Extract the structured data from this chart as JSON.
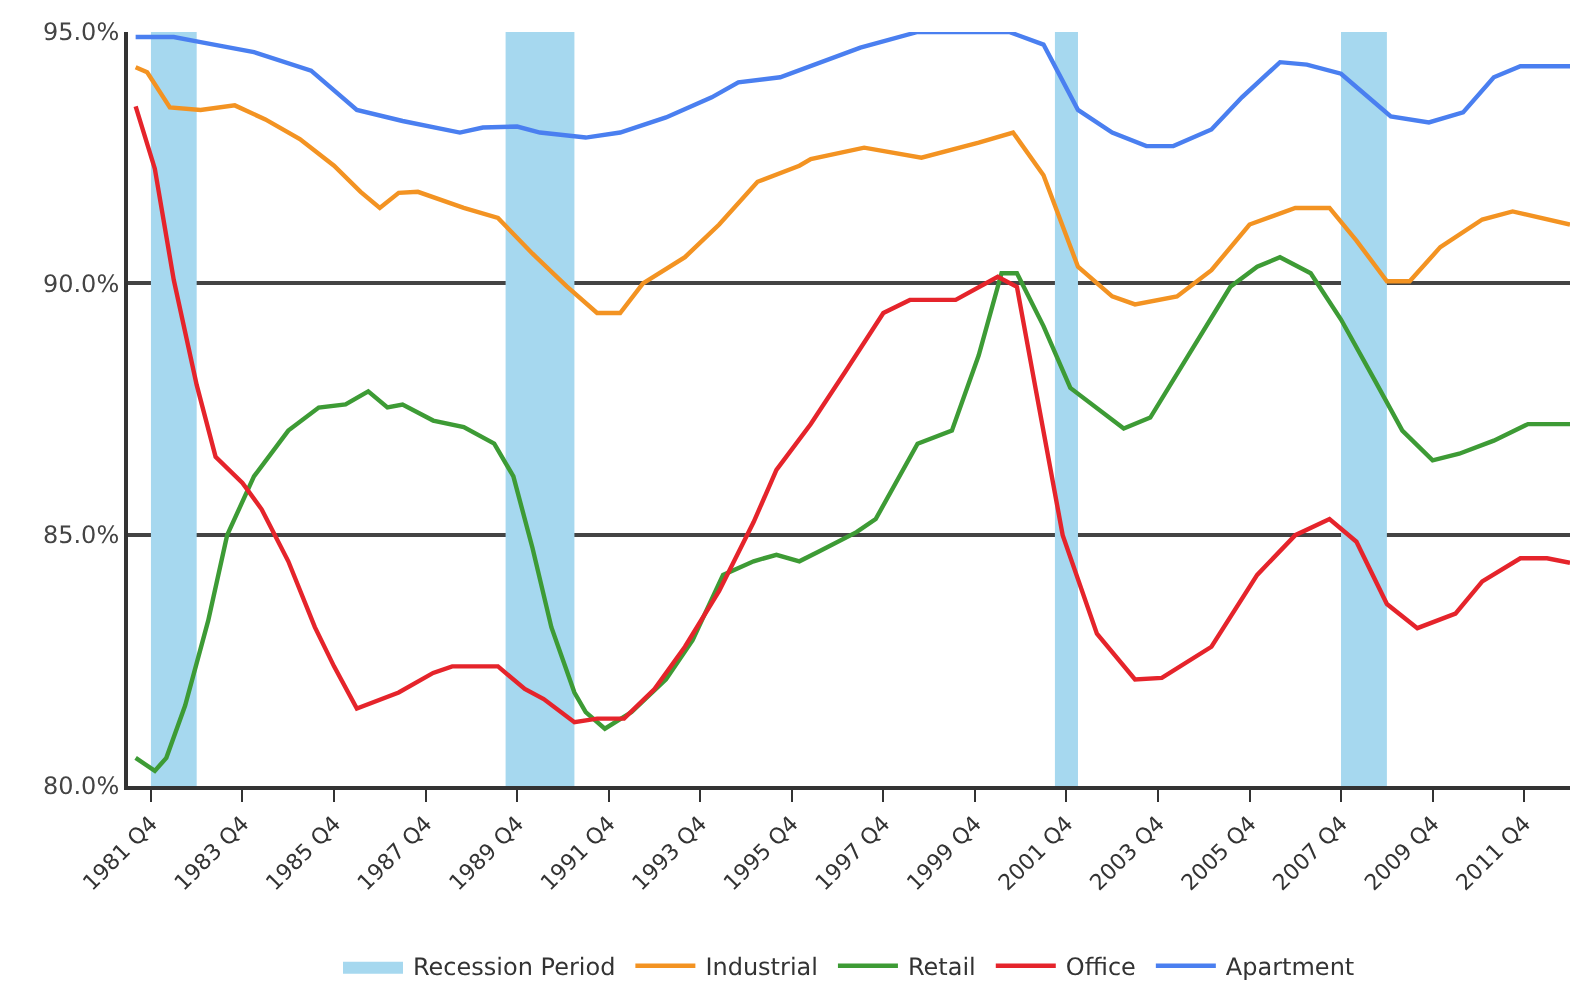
{
  "chart_data": {
    "type": "line",
    "xlim": [
      "1981-04",
      "2012-10"
    ],
    "xticks": [
      {
        "value": "1981-10",
        "label": "1981 Q4"
      },
      {
        "value": "1983-10",
        "label": "1983 Q4"
      },
      {
        "value": "1985-10",
        "label": "1985 Q4"
      },
      {
        "value": "1987-10",
        "label": "1987 Q4"
      },
      {
        "value": "1989-10",
        "label": "1989 Q4"
      },
      {
        "value": "1991-10",
        "label": "1991 Q4"
      },
      {
        "value": "1993-10",
        "label": "1993 Q4"
      },
      {
        "value": "1995-10",
        "label": "1995 Q4"
      },
      {
        "value": "1997-10",
        "label": "1997 Q4"
      },
      {
        "value": "1999-10",
        "label": "1999 Q4"
      },
      {
        "value": "2001-10",
        "label": "2001 Q4"
      },
      {
        "value": "2003-10",
        "label": "2003 Q4"
      },
      {
        "value": "2005-10",
        "label": "2005 Q4"
      },
      {
        "value": "2007-10",
        "label": "2007 Q4"
      },
      {
        "value": "2009-10",
        "label": "2009 Q4"
      },
      {
        "value": "2011-10",
        "label": "2011 Q4"
      }
    ],
    "ylim": [
      80,
      95
    ],
    "yticks": [
      {
        "value": 80,
        "label": "80.0%"
      },
      {
        "value": 85,
        "label": "85.0%"
      },
      {
        "value": 90,
        "label": "90.0%"
      },
      {
        "value": 95,
        "label": "95.0%"
      }
    ],
    "grid": "y",
    "legend": "bottom",
    "marker": "none",
    "line_style": "solid",
    "bands": [
      {
        "axis": "x",
        "from": "1981-10",
        "to": "1982-10",
        "label": "Recession Period",
        "color": "#a6d8ef"
      },
      {
        "axis": "x",
        "from": "1989-07",
        "to": "1991-01",
        "color": "#a6d8ef"
      },
      {
        "axis": "x",
        "from": "2001-07",
        "to": "2002-01",
        "color": "#a6d8ef"
      },
      {
        "axis": "x",
        "from": "2007-10",
        "to": "2008-10",
        "color": "#a6d8ef"
      }
    ],
    "series": [
      {
        "name": "Industrial",
        "color": "#f39322",
        "x": [
          "1981-06",
          "1981-09",
          "1982-03",
          "1982-11",
          "1983-08",
          "1984-04",
          "1985-01",
          "1985-10",
          "1986-05",
          "1986-10",
          "1987-03",
          "1987-08",
          "1988-08",
          "1989-05",
          "1990-02",
          "1990-11",
          "1991-07",
          "1992-01",
          "1992-07",
          "1993-06",
          "1994-03",
          "1995-01",
          "1995-12",
          "1996-03",
          "1997-05",
          "1998-08",
          "1999-11",
          "2000-08",
          "2001-04",
          "2002-01",
          "2002-10",
          "2003-04",
          "2004-03",
          "2004-12",
          "2005-10",
          "2006-10",
          "2007-07",
          "2008-02",
          "2008-10",
          "2009-04",
          "2009-12",
          "2010-11",
          "2011-07",
          "2012-10"
        ],
        "values": [
          94.3,
          94.2,
          93.5,
          93.45,
          93.54,
          93.26,
          92.87,
          92.34,
          91.82,
          91.5,
          91.8,
          91.82,
          91.5,
          91.3,
          90.59,
          89.94,
          89.41,
          89.41,
          90.0,
          90.52,
          91.17,
          92.02,
          92.34,
          92.47,
          92.7,
          92.5,
          92.8,
          93.0,
          92.15,
          90.33,
          89.74,
          89.58,
          89.74,
          90.26,
          91.17,
          91.5,
          91.5,
          90.85,
          90.04,
          90.04,
          90.72,
          91.27,
          91.43,
          91.17
        ]
      },
      {
        "name": "Retail",
        "color": "#3d9b35",
        "x": [
          "1981-06",
          "1981-11",
          "1982-02",
          "1982-07",
          "1983-01",
          "1983-06",
          "1984-01",
          "1984-10",
          "1985-06",
          "1986-01",
          "1986-07",
          "1986-12",
          "1987-04",
          "1987-12",
          "1988-08",
          "1989-04",
          "1989-09",
          "1990-02",
          "1990-07",
          "1991-01",
          "1991-04",
          "1991-09",
          "1992-04",
          "1993-01",
          "1993-08",
          "1994-04",
          "1994-12",
          "1995-06",
          "1995-12",
          "1996-05",
          "1997-03",
          "1997-08",
          "1998-07",
          "1999-04",
          "1999-11",
          "2000-05",
          "2000-09",
          "2001-04",
          "2001-11",
          "2003-01",
          "2003-08",
          "2004-06",
          "2005-05",
          "2005-12",
          "2006-06",
          "2007-02",
          "2007-10",
          "2008-07",
          "2009-02",
          "2009-10",
          "2010-05",
          "2011-02",
          "2011-11",
          "2012-10"
        ],
        "values": [
          80.56,
          80.3,
          80.56,
          81.6,
          83.29,
          84.99,
          86.16,
          87.07,
          87.53,
          87.59,
          87.85,
          87.53,
          87.59,
          87.27,
          87.14,
          86.81,
          86.16,
          84.73,
          83.16,
          81.86,
          81.47,
          81.14,
          81.47,
          82.12,
          82.9,
          84.2,
          84.47,
          84.6,
          84.47,
          84.66,
          85.05,
          85.31,
          86.81,
          87.07,
          88.57,
          90.2,
          90.2,
          89.15,
          87.92,
          87.11,
          87.33,
          88.57,
          89.93,
          90.33,
          90.52,
          90.2,
          89.28,
          88.05,
          87.07,
          86.48,
          86.61,
          86.87,
          87.2,
          87.2
        ]
      },
      {
        "name": "Office",
        "color": "#e5242b",
        "x": [
          "1981-06",
          "1981-11",
          "1982-04",
          "1982-10",
          "1983-03",
          "1983-10",
          "1984-03",
          "1984-10",
          "1985-05",
          "1985-10",
          "1986-04",
          "1987-03",
          "1987-12",
          "1988-05",
          "1989-05",
          "1989-12",
          "1990-05",
          "1991-01",
          "1991-07",
          "1992-02",
          "1992-10",
          "1993-06",
          "1994-03",
          "1994-12",
          "1995-06",
          "1996-03",
          "1996-12",
          "1997-10",
          "1998-05",
          "1999-05",
          "2000-04",
          "2000-09",
          "2001-02",
          "2001-09",
          "2002-06",
          "2003-04",
          "2003-11",
          "2004-12",
          "2005-12",
          "2006-10",
          "2007-07",
          "2008-02",
          "2008-10",
          "2009-06",
          "2010-04",
          "2010-11",
          "2011-09",
          "2012-04",
          "2012-10"
        ],
        "values": [
          93.52,
          92.28,
          90.07,
          87.98,
          86.55,
          86.03,
          85.51,
          84.47,
          83.16,
          82.38,
          81.54,
          81.86,
          82.25,
          82.38,
          82.38,
          81.93,
          81.73,
          81.27,
          81.34,
          81.34,
          81.93,
          82.77,
          83.88,
          85.25,
          86.29,
          87.2,
          88.24,
          89.41,
          89.67,
          89.67,
          90.13,
          89.93,
          87.85,
          84.99,
          83.03,
          82.12,
          82.15,
          82.77,
          84.2,
          84.99,
          85.31,
          84.86,
          83.62,
          83.14,
          83.43,
          84.07,
          84.53,
          84.53,
          84.44
        ]
      },
      {
        "name": "Apartment",
        "color": "#4a7ff0",
        "x": [
          "1981-06",
          "1982-04",
          "1982-11",
          "1984-01",
          "1985-04",
          "1986-04",
          "1987-04",
          "1988-07",
          "1989-01",
          "1989-10",
          "1990-04",
          "1991-04",
          "1992-01",
          "1993-01",
          "1994-01",
          "1994-08",
          "1995-07",
          "1997-04",
          "1998-07",
          "2000-07",
          "2001-04",
          "2002-01",
          "2002-10",
          "2003-07",
          "2004-02",
          "2004-12",
          "2005-08",
          "2006-06",
          "2007-01",
          "2007-10",
          "2008-11",
          "2009-09",
          "2010-06",
          "2011-02",
          "2011-09",
          "2012-10"
        ],
        "values": [
          94.9,
          94.9,
          94.8,
          94.6,
          94.23,
          93.45,
          93.23,
          93.0,
          93.1,
          93.12,
          93.0,
          92.9,
          93.0,
          93.3,
          93.7,
          94.0,
          94.1,
          94.69,
          95.0,
          95.0,
          94.75,
          93.45,
          93.0,
          92.73,
          92.73,
          93.06,
          93.7,
          94.4,
          94.35,
          94.17,
          93.32,
          93.2,
          93.4,
          94.1,
          94.32,
          94.32
        ]
      }
    ]
  }
}
